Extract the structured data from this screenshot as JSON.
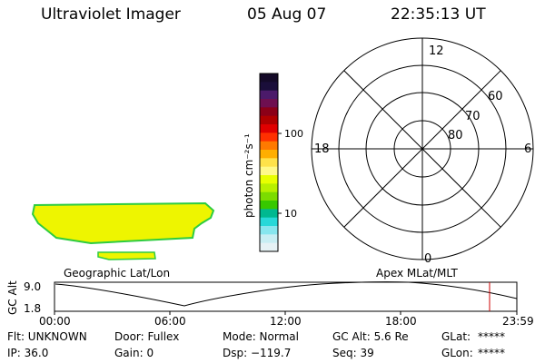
{
  "header": {
    "title": "Ultraviolet Imager",
    "date": "05 Aug 07",
    "time": "22:35:13 UT"
  },
  "colorbar": {
    "unit_label": "photon cm⁻²s⁻¹",
    "ticks": [
      "100",
      "10"
    ],
    "colors": [
      "#140a28",
      "#1a0e3a",
      "#4b1a6a",
      "#6e0f50",
      "#8b0018",
      "#b00000",
      "#e00000",
      "#ff3000",
      "#ff7a00",
      "#ffae00",
      "#ffe24a",
      "#fff98a",
      "#e8ff00",
      "#b8f000",
      "#7cdc00",
      "#37c800",
      "#00b890",
      "#27d8d8",
      "#87e6ee",
      "#c8eef3",
      "#e6f2f5"
    ]
  },
  "polar": {
    "mlt_labels": {
      "top": "12",
      "left": "18",
      "right": "6",
      "bottom": "0"
    },
    "lat_labels": [
      "60",
      "70",
      "80"
    ]
  },
  "image_panel": {
    "left_caption": "Geographic Lat/Lon",
    "right_caption": "Apex MLat/MLT",
    "fill_color": "#eef500",
    "edge_color": "#2ecc40"
  },
  "orbit_plot": {
    "ylabel": "GC Alt",
    "yticks": [
      "9.0",
      "1.8"
    ],
    "xticks": [
      "00:00",
      "06:00",
      "12:00",
      "18:00",
      "23:59"
    ],
    "marker_color": "#cc0000"
  },
  "info": {
    "row1": {
      "flt": "Flt: UNKNOWN",
      "door": "Door: Fullex",
      "mode": "Mode: Normal",
      "gcalt": "GC Alt: 5.6 Re",
      "glat_label": "GLat:",
      "glat_value": "*****"
    },
    "row2": {
      "ip": "IP: 36.0",
      "gain": "Gain:  0",
      "dsp": "Dsp: −119.7",
      "seq": "Seq: 39",
      "glon_label": "GLon:",
      "glon_value": "*****"
    }
  }
}
